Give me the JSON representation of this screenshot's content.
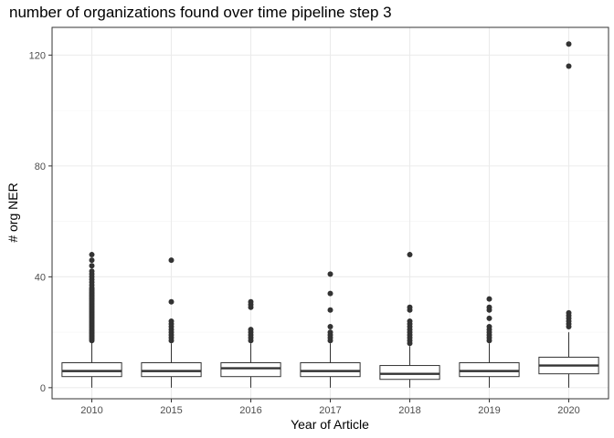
{
  "chart_data": {
    "type": "boxplot",
    "title": "number of organizations found over time pipeline step 3",
    "xlabel": "Year of Article",
    "ylabel": "# org NER",
    "categories": [
      "2010",
      "2015",
      "2016",
      "2017",
      "2018",
      "2019",
      "2020"
    ],
    "ylim": [
      -4,
      130
    ],
    "yticks": [
      0,
      40,
      80,
      120
    ],
    "grid": true,
    "boxes": [
      {
        "category": "2010",
        "min": 0,
        "q1": 4,
        "median": 6,
        "q3": 9,
        "max": 16.5,
        "outliers": [
          17,
          17.5,
          18,
          18.5,
          19,
          19.5,
          20,
          20.5,
          21,
          21.5,
          22,
          22.5,
          23,
          23.5,
          24,
          24.5,
          25,
          25.5,
          26,
          26.5,
          27,
          27.5,
          28,
          28.5,
          29,
          29.5,
          30,
          30.5,
          31,
          31.5,
          32,
          32.5,
          33,
          33.5,
          34,
          34.5,
          35,
          35.5,
          36,
          37,
          38,
          39,
          40,
          41,
          42,
          44,
          46,
          48
        ]
      },
      {
        "category": "2015",
        "min": 0,
        "q1": 4,
        "median": 6,
        "q3": 9,
        "max": 16,
        "outliers": [
          17,
          18,
          19,
          20,
          21,
          22,
          23,
          24,
          31,
          46
        ]
      },
      {
        "category": "2016",
        "min": 0,
        "q1": 4,
        "median": 7,
        "q3": 9,
        "max": 16,
        "outliers": [
          17,
          18,
          19,
          20,
          21,
          29,
          30,
          31
        ]
      },
      {
        "category": "2017",
        "min": 0,
        "q1": 4,
        "median": 6,
        "q3": 9,
        "max": 16,
        "outliers": [
          17,
          18,
          19,
          20,
          22,
          28,
          34,
          41
        ]
      },
      {
        "category": "2018",
        "min": 0,
        "q1": 3,
        "median": 5,
        "q3": 8,
        "max": 15,
        "outliers": [
          16,
          17,
          18,
          19,
          20,
          21,
          22,
          23,
          24,
          28,
          29,
          48
        ]
      },
      {
        "category": "2019",
        "min": 0,
        "q1": 4,
        "median": 6,
        "q3": 9,
        "max": 16,
        "outliers": [
          17,
          18,
          19,
          20,
          21,
          22,
          25,
          28,
          29,
          32
        ]
      },
      {
        "category": "2020",
        "min": 0,
        "q1": 5,
        "median": 8,
        "q3": 11,
        "max": 20,
        "outliers": [
          22,
          23,
          24,
          25,
          26,
          27,
          116,
          124
        ]
      }
    ],
    "colors": {
      "panel_border": "#333333",
      "grid_major": "#ebebeb",
      "grid_minor": "#f5f5f5",
      "box": "#333333",
      "box_fill": "#ffffff",
      "point": "#333333",
      "tick_label": "#4d4d4d"
    }
  }
}
